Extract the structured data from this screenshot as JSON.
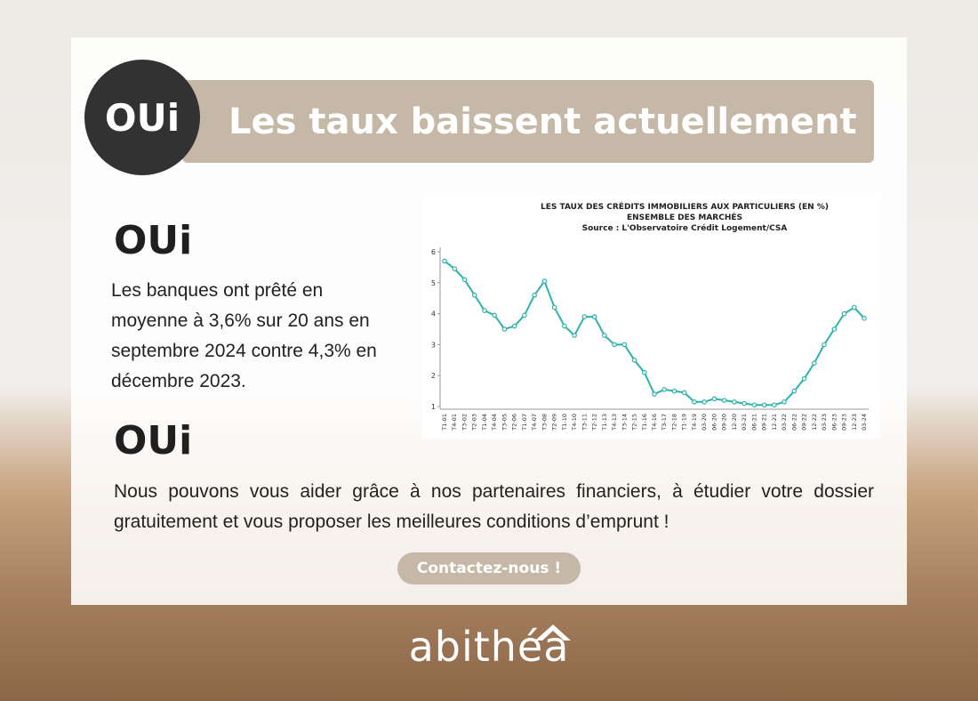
{
  "header": {
    "badge": "OUi",
    "title": "Les taux baissent actuellement"
  },
  "sections": [
    {
      "heading": "OUi",
      "text": "Les banques ont prêté en moyenne à 3,6% sur 20 ans en septembre 2024 contre 4,3% en décembre 2023."
    },
    {
      "heading": "OUi",
      "text": "Nous pouvons vous aider grâce à nos partenaires financiers, à étudier votre dossier gratuitement et vous proposer les meilleures conditions d’emprunt !"
    }
  ],
  "button": "Contactez-nous !",
  "logo": "abithéa",
  "chart_data": {
    "type": "line",
    "title": "LES TAUX DES CRÉDITS IMMOBILIERS AUX PARTICULIERS (EN %)",
    "subtitle": "ENSEMBLE DES MARCHÉS",
    "source": "Source : L'Observatoire Crédit Logement/CSA",
    "categories": [
      "T1-01",
      "T4-01",
      "T3-02",
      "T2-03",
      "T1-04",
      "T4-04",
      "T3-05",
      "T2-06",
      "T1-07",
      "T4-07",
      "T3-08",
      "T2-09",
      "T1-10",
      "T4-10",
      "T3-11",
      "T2-12",
      "T1-13",
      "T4-13",
      "T3-14",
      "T2-15",
      "T1-16",
      "T4-16",
      "T3-17",
      "T2-18",
      "T1-19",
      "T4-19",
      "03-20",
      "06-20",
      "09-20",
      "12-20",
      "03-21",
      "06-21",
      "09-21",
      "12-21",
      "03-22",
      "06-22",
      "09-22",
      "12-22",
      "03-23",
      "06-23",
      "09-23",
      "12-23",
      "03-24"
    ],
    "values": [
      5.7,
      5.45,
      5.1,
      4.6,
      4.1,
      3.95,
      3.5,
      3.6,
      3.95,
      4.6,
      5.05,
      4.2,
      3.6,
      3.3,
      3.9,
      3.9,
      3.3,
      3.0,
      3.0,
      2.5,
      2.1,
      1.4,
      1.55,
      1.5,
      1.45,
      1.15,
      1.15,
      1.25,
      1.2,
      1.15,
      1.1,
      1.05,
      1.05,
      1.05,
      1.15,
      1.5,
      1.9,
      2.4,
      3.0,
      3.5,
      4.0,
      4.2,
      3.85
    ],
    "color": "#2bb3aa",
    "ylim": [
      1,
      6
    ],
    "yticks": [
      1,
      2,
      3,
      4,
      5,
      6
    ],
    "grid": false
  }
}
